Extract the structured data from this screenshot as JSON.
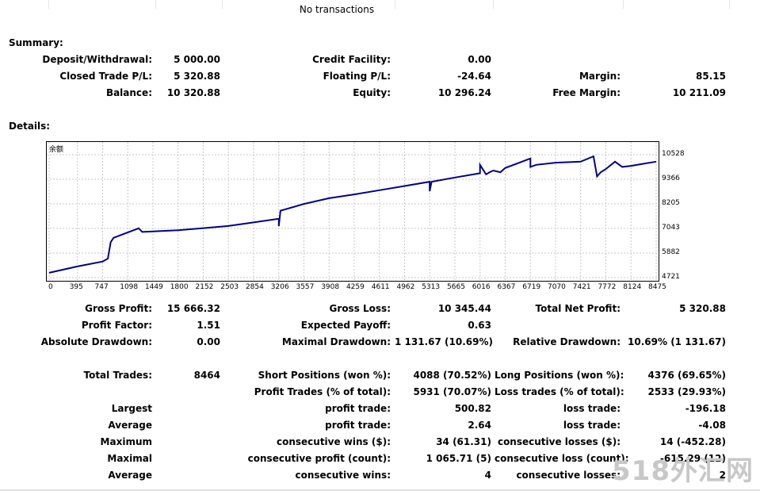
{
  "header": {
    "no_transactions": "No transactions"
  },
  "summary": {
    "title": "Summary:",
    "deposit_label": "Deposit/Withdrawal:",
    "deposit_value": "5 000.00",
    "credit_label": "Credit Facility:",
    "credit_value": "0.00",
    "closed_label": "Closed Trade P/L:",
    "closed_value": "5 320.88",
    "floating_label": "Floating P/L:",
    "floating_value": "-24.64",
    "margin_label": "Margin:",
    "margin_value": "85.15",
    "balance_label": "Balance:",
    "balance_value": "10 320.88",
    "equity_label": "Equity:",
    "equity_value": "10 296.24",
    "free_margin_label": "Free Margin:",
    "free_margin_value": "10 211.09"
  },
  "details": {
    "title": "Details:"
  },
  "chart_data": {
    "type": "line",
    "legend": "余额",
    "x_ticks": [
      "0",
      "395",
      "747",
      "1098",
      "1449",
      "1800",
      "2152",
      "2503",
      "2854",
      "3206",
      "3557",
      "3908",
      "4259",
      "4611",
      "4962",
      "5313",
      "5665",
      "6016",
      "6367",
      "6719",
      "7070",
      "7421",
      "7772",
      "8124",
      "8475"
    ],
    "y_ticks": [
      "10528",
      "9366",
      "8205",
      "7043",
      "5882",
      "4721"
    ],
    "xlim": [
      0,
      8475
    ],
    "ylim": [
      4721,
      10528
    ],
    "x": [
      0,
      395,
      747,
      820,
      860,
      900,
      1250,
      1300,
      1449,
      1800,
      2152,
      2503,
      2854,
      3206,
      3206,
      3230,
      3557,
      3908,
      4259,
      4611,
      4962,
      5313,
      5313,
      5340,
      5665,
      6016,
      6016,
      6100,
      6150,
      6200,
      6300,
      6367,
      6719,
      6719,
      6800,
      7070,
      7421,
      7600,
      7650,
      7700,
      7772,
      7900,
      8000,
      8124,
      8300,
      8475
    ],
    "y": [
      4950,
      5250,
      5480,
      5620,
      6400,
      6600,
      7050,
      6880,
      6900,
      6960,
      7060,
      7160,
      7330,
      7500,
      7150,
      7880,
      8200,
      8470,
      8650,
      8850,
      9050,
      9250,
      8800,
      9250,
      9450,
      9650,
      10050,
      9600,
      9700,
      9780,
      9700,
      9900,
      10350,
      9950,
      10050,
      10150,
      10200,
      10450,
      9500,
      9700,
      9850,
      10200,
      9950,
      10000,
      10100,
      10200
    ],
    "series_color": "#00008b"
  },
  "stats": {
    "gross_profit_label": "Gross Profit:",
    "gross_profit_value": "15 666.32",
    "gross_loss_label": "Gross Loss:",
    "gross_loss_value": "10 345.44",
    "total_net_label": "Total Net Profit:",
    "total_net_value": "5 320.88",
    "profit_factor_label": "Profit Factor:",
    "profit_factor_value": "1.51",
    "expected_payoff_label": "Expected Payoff:",
    "expected_payoff_value": "0.63",
    "abs_dd_label": "Absolute Drawdown:",
    "abs_dd_value": "0.00",
    "max_dd_label": "Maximal Drawdown:",
    "max_dd_value": "1 131.67 (10.69%)",
    "rel_dd_label": "Relative Drawdown:",
    "rel_dd_value": "10.69% (1 131.67)",
    "total_trades_label": "Total Trades:",
    "total_trades_value": "8464",
    "short_label": "Short Positions (won %):",
    "short_value": "4088 (70.52%)",
    "long_label": "Long Positions (won %):",
    "long_value": "4376 (69.65%)",
    "profit_trades_label": "Profit Trades (% of total):",
    "profit_trades_value": "5931 (70.07%)",
    "loss_trades_label": "Loss trades (% of total):",
    "loss_trades_value": "2533 (29.93%)",
    "largest_label": "Largest",
    "largest_profit_label": "profit trade:",
    "largest_profit_value": "500.82",
    "largest_loss_label": "loss trade:",
    "largest_loss_value": "-196.18",
    "average_label": "Average",
    "average_profit_label": "profit trade:",
    "average_profit_value": "2.64",
    "average_loss_label": "loss trade:",
    "average_loss_value": "-4.08",
    "maximum_label": "Maximum",
    "max_cons_wins_label": "consecutive wins ($):",
    "max_cons_wins_value": "34 (61.31)",
    "max_cons_losses_label": "consecutive losses ($):",
    "max_cons_losses_value": "14 (-452.28)",
    "maximal_label": "Maximal",
    "maximal_profit_label": "consecutive profit (count):",
    "maximal_profit_value": "1 065.71 (5)",
    "maximal_loss_label": "consecutive loss (count):",
    "maximal_loss_value": "-615.29 (12)",
    "average2_label": "Average",
    "avg_cons_wins_label": "consecutive wins:",
    "avg_cons_wins_value": "4",
    "avg_cons_losses_label": "consecutive losses:",
    "avg_cons_losses_value": "2"
  },
  "watermark": "518外汇网"
}
